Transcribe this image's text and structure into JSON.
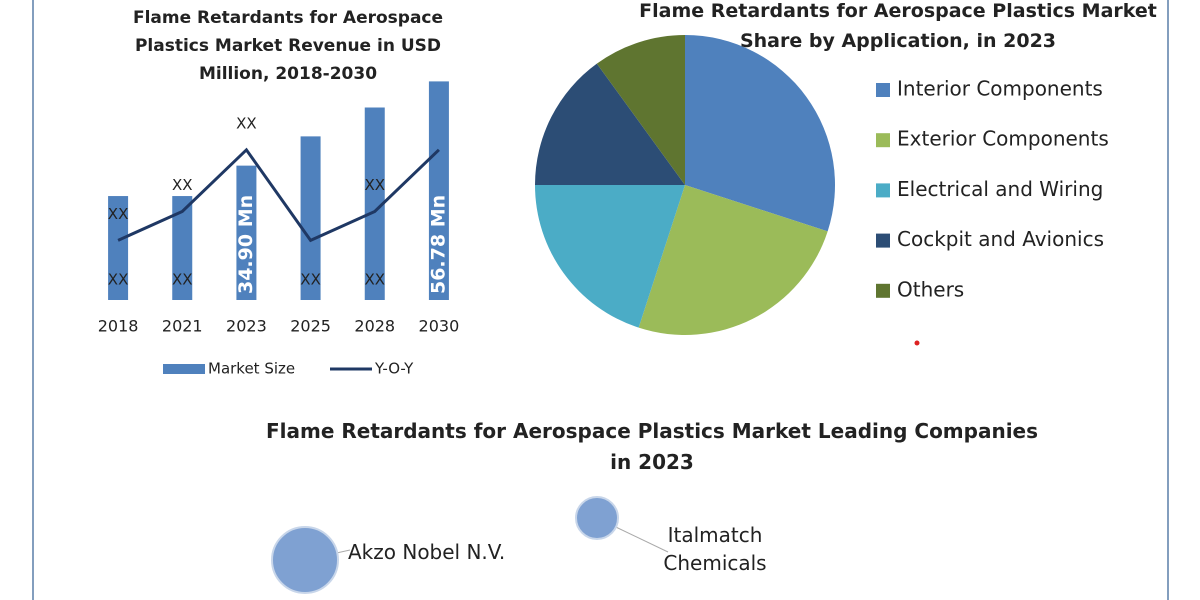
{
  "chart_data": [
    {
      "type": "bar-line",
      "title": "Flame Retardants for Aerospace Plastics Market Revenue in USD Million, 2018-2030",
      "categories": [
        "2018",
        "2021",
        "2023",
        "2025",
        "2028",
        "2030"
      ],
      "ylim": [
        0,
        60
      ],
      "series": [
        {
          "name": "Market Size",
          "type": "bar",
          "color": "#4f81bd",
          "values": [
            27,
            27,
            34.9,
            42.5,
            50,
            56.78
          ],
          "value_labels": [
            "XX",
            "XX",
            "34.90 Mn",
            "XX",
            "XX",
            "56.78 Mn"
          ]
        },
        {
          "name": "Y-O-Y",
          "type": "line",
          "color": "#1f3864",
          "values": [
            15.5,
            23,
            39,
            15.5,
            23,
            39
          ],
          "value_labels": [
            "XX",
            "XX",
            "XX",
            null,
            "XX",
            null
          ]
        }
      ]
    },
    {
      "type": "pie",
      "title": "Flame Retardants for Aerospace Plastics Market Share by Application, in 2023",
      "categories": [
        "Interior Components",
        "Exterior Components",
        "Electrical and Wiring",
        "Cockpit and Avionics",
        "Others"
      ],
      "values": [
        30,
        25,
        20,
        15,
        10
      ],
      "colors": [
        "#4f81bd",
        "#9bbb59",
        "#4bacc6",
        "#2c4d75",
        "#5f7530"
      ]
    }
  ],
  "companies": {
    "title": "Flame Retardants for Aerospace Plastics Market Leading Companies in 2023",
    "items": [
      "Akzo Nobel N.V.",
      "Italmatch Chemicals"
    ]
  }
}
